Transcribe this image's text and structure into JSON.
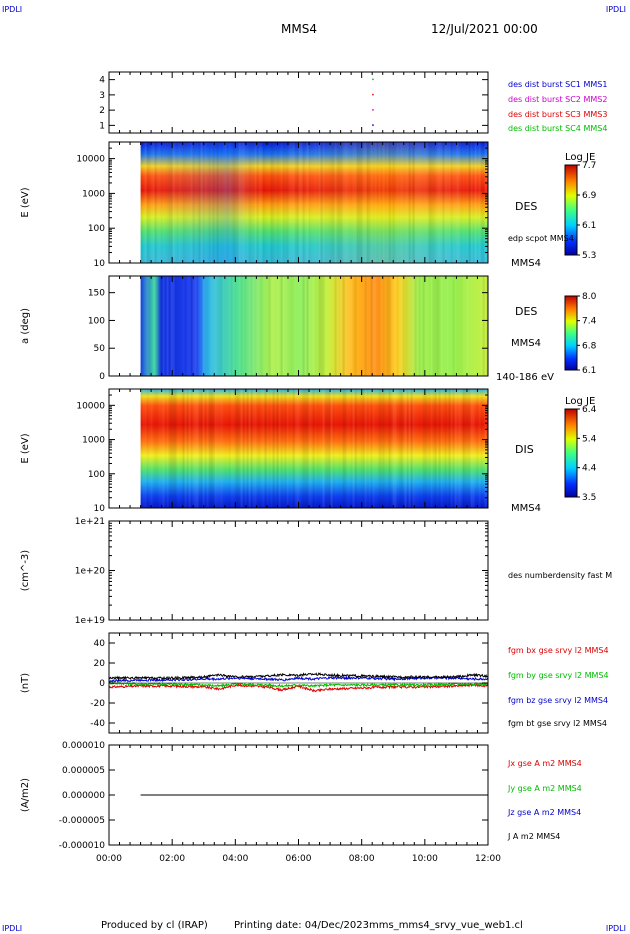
{
  "header": {
    "corner_tl": "IPDLI",
    "corner_tr": "IPDLI",
    "corner_bl": "IPDLI",
    "corner_br": "IPDLI",
    "spacecraft": "MMS4",
    "date": "12/Jul/2021 00:00"
  },
  "footer": {
    "produced": "Produced by cl (IRAP)",
    "printing": "Printing date: 04/Dec/2023",
    "file": "mms_mms4_srvy_vue_web1.cl"
  },
  "colors": {
    "blue": "#0000cc",
    "magenta": "#cc00cc",
    "red": "#dd0000",
    "green": "#00bb00",
    "black": "#000000"
  },
  "chart_data": [
    {
      "type": "scatter",
      "panel": "burst-availability",
      "ylim": [
        0.5,
        4.5
      ],
      "yticks": [
        "1",
        "2",
        "3",
        "4"
      ],
      "legend": [
        {
          "name": "des dist burst SC1 MMS1",
          "color": "#0000cc"
        },
        {
          "name": "des dist burst SC2 MMS2",
          "color": "#cc00cc"
        },
        {
          "name": "des dist burst SC3 MMS3",
          "color": "#dd0000"
        },
        {
          "name": "des dist burst SC4 MMS4",
          "color": "#00bb00"
        }
      ],
      "points": [
        {
          "x": "08:20",
          "y": 1
        },
        {
          "x": "08:20",
          "y": 2
        },
        {
          "x": "08:20",
          "y": 3
        },
        {
          "x": "08:20",
          "y": 4
        }
      ]
    },
    {
      "type": "heatmap",
      "panel": "des-energy",
      "ylabel": "E (eV)",
      "yscale": "log",
      "ylim": [
        10,
        30000
      ],
      "yticks": [
        "10000",
        "1000",
        "100",
        "10"
      ],
      "label": "DES",
      "overlay_label": "edp scpot MMS4",
      "spacecraft_label": "MMS4",
      "colorbar": {
        "title": "Log JE",
        "ticks": [
          "7.7",
          "6.9",
          "6.1",
          "5.3"
        ],
        "range": [
          5.3,
          7.7
        ]
      },
      "data_start": "01:00",
      "data_end": "12:00"
    },
    {
      "type": "heatmap",
      "panel": "des-pitch",
      "ylabel": "a (deg)",
      "ylim": [
        0,
        180
      ],
      "yticks": [
        "150",
        "100",
        "50",
        "0"
      ],
      "label": "DES",
      "spacecraft_label": "MMS4",
      "energy_label": "140-186 eV",
      "colorbar": {
        "ticks": [
          "8.0",
          "7.4",
          "6.8",
          "6.1"
        ],
        "range": [
          6.1,
          8.0
        ]
      },
      "data_start": "01:00",
      "data_end": "12:00"
    },
    {
      "type": "heatmap",
      "panel": "dis-energy",
      "ylabel": "E (eV)",
      "yscale": "log",
      "ylim": [
        10,
        30000
      ],
      "yticks": [
        "10000",
        "1000",
        "100",
        "10"
      ],
      "label": "DIS",
      "spacecraft_label": "MMS4",
      "colorbar": {
        "title": "Log JE",
        "ticks": [
          "6.4",
          "5.4",
          "4.4",
          "3.5"
        ],
        "range": [
          3.5,
          6.4
        ]
      },
      "data_start": "01:00",
      "data_end": "12:00"
    },
    {
      "type": "line",
      "panel": "density",
      "ylabel": "(cm^-3)",
      "yscale": "log",
      "ylim": [
        1e+19,
        1e+21
      ],
      "yticks": [
        "1e+21",
        "1e+20",
        "1e+19"
      ],
      "legend": [
        {
          "name": "des numberdensity fast M",
          "color": "#000000"
        }
      ],
      "series": []
    },
    {
      "type": "line",
      "panel": "fgm",
      "ylabel": "(nT)",
      "ylim": [
        -50,
        50
      ],
      "yticks": [
        "40",
        "20",
        "0",
        "-20",
        "-40"
      ],
      "x": [
        "00:00",
        "01:00",
        "02:00",
        "03:00",
        "03:30",
        "04:00",
        "05:00",
        "05:30",
        "06:00",
        "06:30",
        "07:00",
        "08:00",
        "09:00",
        "10:00",
        "11:00",
        "11:30",
        "12:00"
      ],
      "series": [
        {
          "name": "fgm bx gse srvy l2 MMS4",
          "color": "#dd0000",
          "values": [
            -4,
            -3,
            -3,
            -4,
            -6,
            -2,
            -4,
            -7,
            -3,
            -8,
            -6,
            -5,
            -4,
            -4,
            -3,
            -2,
            -3
          ]
        },
        {
          "name": "fgm by gse srvy l2 MMS4",
          "color": "#00bb00",
          "values": [
            0,
            -1,
            -1,
            -2,
            -3,
            -1,
            -2,
            -3,
            -2,
            -3,
            -2,
            -2,
            -2,
            -2,
            -1,
            -1,
            -1
          ]
        },
        {
          "name": "fgm bz gse srvy l2 MMS4",
          "color": "#0000cc",
          "values": [
            2,
            3,
            3,
            4,
            4,
            5,
            4,
            3,
            5,
            4,
            5,
            5,
            4,
            5,
            5,
            4,
            4
          ]
        },
        {
          "name": "fgm bt gse srvy l2 MMS4",
          "color": "#000000",
          "values": [
            5,
            5,
            5,
            6,
            8,
            6,
            7,
            8,
            8,
            9,
            8,
            7,
            6,
            6,
            6,
            8,
            7
          ]
        }
      ]
    },
    {
      "type": "line",
      "panel": "current",
      "ylabel": "(A/m2)",
      "ylim": [
        -1e-05,
        1e-05
      ],
      "yticks": [
        "0.000010",
        "0.000005",
        "0.000000",
        "-0.000005",
        "-0.000010"
      ],
      "legend": [
        {
          "name": "Jx gse A m2 MMS4",
          "color": "#dd0000"
        },
        {
          "name": "Jy gse A m2 MMS4",
          "color": "#00bb00"
        },
        {
          "name": "Jz gse A m2 MMS4",
          "color": "#0000cc"
        },
        {
          "name": "J A m2 MMS4",
          "color": "#000000"
        }
      ],
      "x": [
        "01:00",
        "12:00"
      ],
      "series": [
        {
          "name": "J A m2 MMS4",
          "color": "#000000",
          "values": [
            0,
            0
          ]
        }
      ]
    }
  ],
  "xaxis": {
    "ticks": [
      "00:00",
      "02:00",
      "04:00",
      "06:00",
      "08:00",
      "10:00",
      "12:00"
    ],
    "range_hours": [
      0,
      12
    ]
  }
}
